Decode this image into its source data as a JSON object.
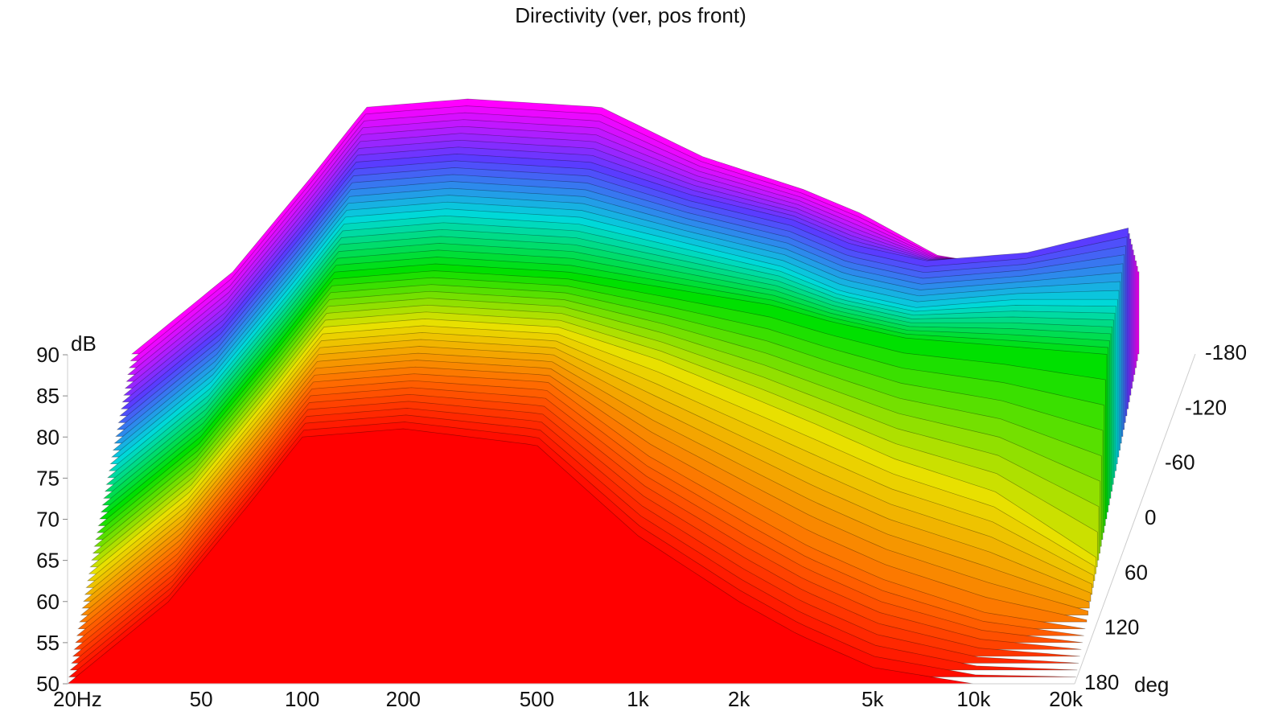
{
  "chart_data": {
    "type": "waterfall-3d",
    "title": "Directivity (ver, pos front)",
    "y_axis": {
      "unit": "dB",
      "range": [
        50,
        90
      ],
      "ticks": [
        "50",
        "55",
        "60",
        "65",
        "70",
        "75",
        "80",
        "85",
        "90"
      ]
    },
    "x_axis": {
      "scale": "log",
      "range_hz": [
        20,
        20000
      ],
      "ticks": [
        {
          "hz": 20,
          "label": "20Hz"
        },
        {
          "hz": 50,
          "label": "50"
        },
        {
          "hz": 100,
          "label": "100"
        },
        {
          "hz": 200,
          "label": "200"
        },
        {
          "hz": 500,
          "label": "500"
        },
        {
          "hz": 1000,
          "label": "1k"
        },
        {
          "hz": 2000,
          "label": "2k"
        },
        {
          "hz": 5000,
          "label": "5k"
        },
        {
          "hz": 10000,
          "label": "10k"
        },
        {
          "hz": 20000,
          "label": "20k"
        }
      ]
    },
    "z_axis": {
      "unit": "deg",
      "range": [
        180,
        -180
      ],
      "ticks": [
        "-180",
        "-120",
        "-60",
        "0",
        "60",
        "120",
        "180"
      ]
    },
    "surface": {
      "angles_deg": [
        -180,
        -120,
        -60,
        0,
        60,
        120,
        180
      ],
      "freqs_hz": [
        20,
        40,
        70,
        100,
        200,
        500,
        1000,
        2000,
        3000,
        5000,
        10000,
        20000
      ],
      "levels_db": [
        [
          50,
          60,
          72,
          80,
          81,
          80,
          74,
          70,
          67,
          62,
          60,
          60
        ],
        [
          50,
          60,
          72,
          80,
          81,
          80,
          76,
          73,
          70,
          68,
          69,
          72
        ],
        [
          50,
          60,
          72,
          80,
          81,
          80,
          77,
          74,
          71,
          69,
          70,
          70
        ],
        [
          50,
          60,
          72,
          80,
          81,
          80,
          78,
          76,
          74,
          72,
          71,
          70
        ],
        [
          50,
          60,
          72,
          80,
          81,
          80,
          76,
          71,
          68,
          64,
          60,
          52
        ],
        [
          50,
          60,
          72,
          80,
          81,
          80,
          71,
          64,
          60,
          56,
          52,
          50
        ],
        [
          50,
          60,
          72,
          80,
          81,
          79,
          68,
          60,
          56,
          52,
          50,
          50
        ]
      ]
    },
    "colors": {
      "front": "#ff0000",
      "spectrum": [
        "#ff0000",
        "#ff6a00",
        "#e8e000",
        "#00e000",
        "#00d8d8",
        "#5a3cff",
        "#ff00ff"
      ]
    }
  }
}
